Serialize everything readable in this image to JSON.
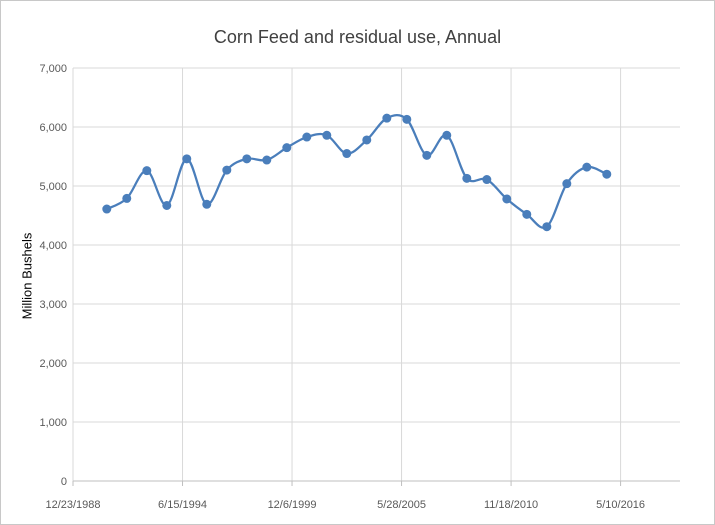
{
  "chart_data": {
    "type": "line",
    "title": "Corn Feed and residual use, Annual",
    "xlabel": "",
    "ylabel": "Million Bushels",
    "ylim": [
      0,
      7000
    ],
    "y_ticks": [
      "0",
      "1,000",
      "2,000",
      "3,000",
      "4,000",
      "5,000",
      "6,000",
      "7,000"
    ],
    "x_ticks": [
      "12/23/1988",
      "6/15/1994",
      "12/6/1999",
      "5/28/2005",
      "11/18/2010",
      "5/10/2016"
    ],
    "x_range": [
      "1988-12-23",
      "2019-04-30"
    ],
    "grid": true,
    "smooth": true,
    "color": "#4a7ebb",
    "series": [
      {
        "x": [
          "1990-09-01",
          "1991-09-01",
          "1992-09-01",
          "1993-09-01",
          "1994-09-01",
          "1995-09-01",
          "1996-09-01",
          "1997-09-01",
          "1998-09-01",
          "1999-09-01",
          "2000-09-01",
          "2001-09-01",
          "2002-09-01",
          "2003-09-01",
          "2004-09-01",
          "2005-09-01",
          "2006-09-01",
          "2007-09-01",
          "2008-09-01",
          "2009-09-01",
          "2010-09-01",
          "2011-09-01",
          "2012-09-01",
          "2013-09-01",
          "2014-09-01",
          "2015-09-01"
        ],
        "y": [
          4610,
          4790,
          5260,
          4670,
          5460,
          4690,
          5270,
          5460,
          5440,
          5650,
          5830,
          5860,
          5550,
          5780,
          6150,
          6130,
          5520,
          5860,
          5130,
          5110,
          4780,
          4520,
          4310,
          5040,
          5320,
          5200
        ]
      }
    ]
  }
}
